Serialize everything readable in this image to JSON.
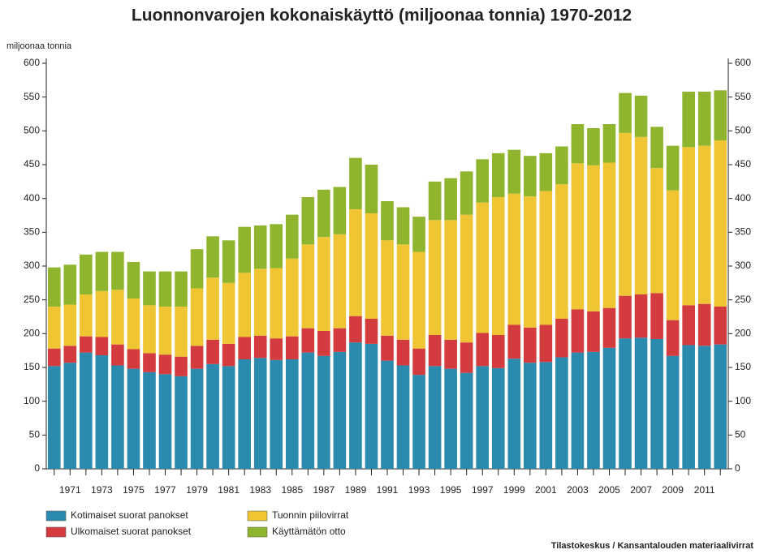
{
  "chart_data": {
    "type": "stacked_bar",
    "title": "Luonnonvarojen kokonaiskäyttö (miljoonaa tonnia) 1970-2012",
    "ylabel": "miljoonaa tonnia",
    "source": "Tilastokeskus / Kansantalouden materiaalivirrat",
    "categories": [
      null,
      1971,
      null,
      1973,
      null,
      1975,
      null,
      1977,
      null,
      1979,
      null,
      1981,
      null,
      1983,
      null,
      1985,
      null,
      1987,
      null,
      1989,
      null,
      1991,
      null,
      1993,
      null,
      1995,
      null,
      1997,
      null,
      1999,
      null,
      2001,
      null,
      2003,
      null,
      2005,
      null,
      2007,
      null,
      2009,
      null,
      2011,
      null
    ],
    "series": [
      {
        "name": "Kotimaiset suorat panokset",
        "color": "#2b8bae",
        "values": [
          152,
          157,
          172,
          168,
          153,
          148,
          143,
          140,
          137,
          148,
          155,
          152,
          162,
          164,
          161,
          162,
          172,
          167,
          173,
          187,
          185,
          160,
          153,
          139,
          152,
          148,
          142,
          152,
          149,
          163,
          157,
          158,
          165,
          172,
          173,
          179,
          193,
          194,
          192,
          167,
          183,
          182,
          184
        ]
      },
      {
        "name": "Ulkomaiset suorat panokset",
        "color": "#d33b3f",
        "values": [
          26,
          25,
          24,
          27,
          31,
          29,
          28,
          29,
          29,
          34,
          36,
          33,
          33,
          33,
          32,
          34,
          36,
          37,
          35,
          39,
          37,
          37,
          38,
          39,
          46,
          43,
          45,
          49,
          49,
          50,
          52,
          55,
          57,
          64,
          60,
          59,
          63,
          64,
          68,
          53,
          59,
          62,
          56
        ]
      },
      {
        "name": "Tuonnin piilovirrat",
        "color": "#efc534",
        "values": [
          62,
          61,
          62,
          68,
          81,
          75,
          71,
          71,
          74,
          85,
          92,
          90,
          95,
          99,
          104,
          115,
          124,
          139,
          139,
          158,
          156,
          141,
          141,
          143,
          170,
          177,
          189,
          193,
          204,
          194,
          194,
          198,
          199,
          216,
          216,
          215,
          241,
          233,
          185,
          192,
          234,
          234,
          246
        ]
      },
      {
        "name": "Käyttämätön otto",
        "color": "#8fb52e",
        "values": [
          58,
          59,
          59,
          58,
          56,
          54,
          50,
          52,
          52,
          58,
          61,
          63,
          68,
          64,
          65,
          65,
          70,
          70,
          70,
          76,
          72,
          58,
          55,
          52,
          57,
          62,
          64,
          64,
          65,
          65,
          60,
          56,
          56,
          58,
          55,
          57,
          59,
          61,
          61,
          66,
          82,
          80,
          74
        ]
      }
    ],
    "ylim": [
      0,
      600
    ],
    "yticks": [
      0,
      50,
      100,
      150,
      200,
      250,
      300,
      350,
      400,
      450,
      500,
      550,
      600
    ],
    "y2lim": [
      0,
      600
    ],
    "y2ticks": [
      0,
      50,
      100,
      150,
      200,
      250,
      300,
      350,
      400,
      450,
      500,
      550,
      600
    ],
    "legend": "bottom-left"
  }
}
